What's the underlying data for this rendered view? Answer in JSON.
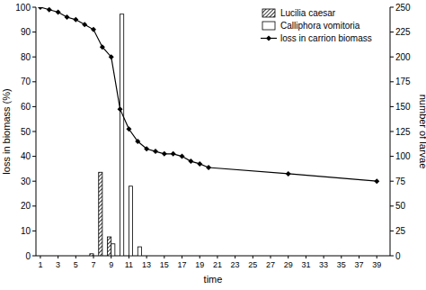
{
  "chart_data": {
    "type": "bar",
    "x_label": "time",
    "y_label": "loss in biomass (%)",
    "y2_label": "number of larvae",
    "categories": [
      "1",
      null,
      "3",
      null,
      "5",
      null,
      "7",
      null,
      "9",
      null,
      "11",
      null,
      "13",
      null,
      "15",
      null,
      "17",
      null,
      "19",
      null,
      "21",
      null,
      "23",
      null,
      "25",
      null,
      "27",
      null,
      "29",
      null,
      "31",
      null,
      "33",
      null,
      "35",
      null,
      "37",
      null,
      "39",
      null
    ],
    "series": [
      {
        "name": "Lucilia caesar",
        "type": "bar",
        "axis": "y2",
        "color": "#000000",
        "marker": "hatch",
        "values": [
          0,
          0,
          0,
          0,
          0,
          0,
          2,
          84,
          19,
          0,
          0,
          0,
          0,
          0,
          0,
          0,
          0,
          0,
          0,
          0,
          0,
          0,
          0,
          0,
          0,
          0,
          0,
          0,
          0,
          0,
          0,
          0,
          0,
          0,
          0,
          0,
          0,
          0,
          0,
          0
        ]
      },
      {
        "name": "Calliphora vomitoria",
        "type": "bar",
        "axis": "y2",
        "color": "#ffffff",
        "values": [
          0,
          0,
          0,
          0,
          0,
          0,
          0,
          0,
          12,
          243,
          70,
          9,
          0,
          0,
          0,
          0,
          0,
          0,
          0,
          0,
          0,
          0,
          0,
          0,
          0,
          0,
          0,
          0,
          0,
          0,
          0,
          0,
          0,
          0,
          0,
          0,
          0,
          0,
          0,
          0
        ]
      },
      {
        "name": "loss in carrion biomass",
        "type": "line",
        "color": "#000000",
        "marker": "diamond",
        "line_style": "solid",
        "x": [
          1,
          2,
          3,
          4,
          5,
          6,
          7,
          8,
          9,
          10,
          11,
          12,
          13,
          14,
          15,
          16,
          17,
          18,
          19,
          20,
          29,
          39
        ],
        "values": [
          100,
          99,
          98,
          96,
          95,
          93,
          91,
          84,
          80,
          59,
          51,
          46,
          43,
          42,
          41,
          41,
          40,
          38,
          37,
          35.5,
          33,
          30
        ]
      }
    ],
    "ylim": [
      0,
      100
    ],
    "yticks": [
      0,
      10,
      20,
      30,
      40,
      50,
      60,
      70,
      80,
      90,
      100
    ],
    "y2lim": [
      0,
      250
    ],
    "y2ticks": [
      0,
      25,
      50,
      75,
      100,
      125,
      150,
      175,
      200,
      225,
      250
    ],
    "legend": "upper right",
    "grid": false
  }
}
